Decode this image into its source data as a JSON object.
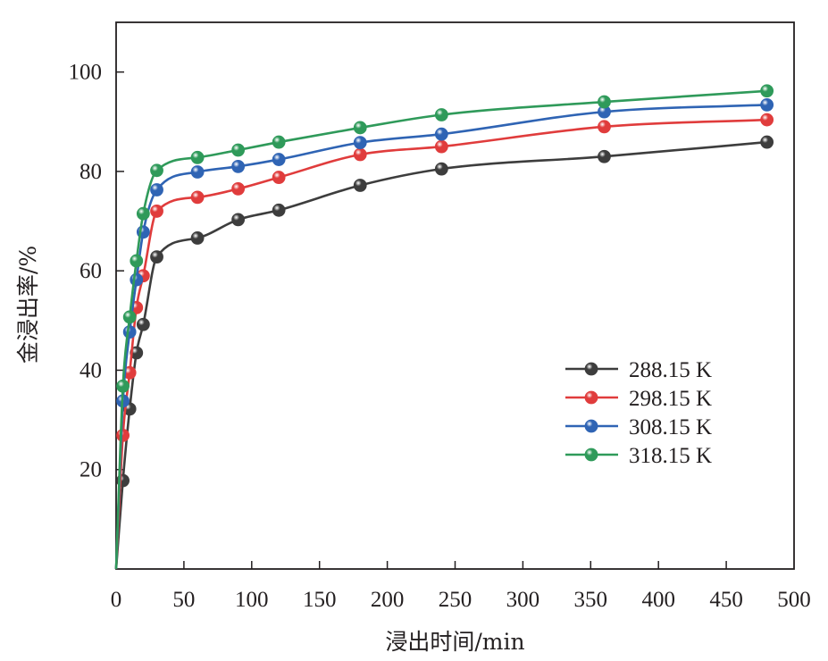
{
  "chart_data": {
    "type": "line",
    "xlabel": "浸出时间/min",
    "ylabel": "金浸出率/%",
    "xlim": [
      0,
      500
    ],
    "ylim": [
      0,
      110
    ],
    "x_ticks": [
      0,
      50,
      100,
      150,
      200,
      250,
      300,
      350,
      400,
      450,
      500
    ],
    "y_ticks": [
      20,
      40,
      60,
      80,
      100
    ],
    "grid": false,
    "legend_position": "bottom-right",
    "x": [
      0,
      5,
      10,
      15,
      20,
      30,
      60,
      90,
      120,
      180,
      240,
      360,
      480
    ],
    "series": [
      {
        "name": "288.15 K",
        "color": "#3d3d3d",
        "values": [
          0,
          17.8,
          32.2,
          43.5,
          49.2,
          62.8,
          66.6,
          70.3,
          72.2,
          77.2,
          80.5,
          83.0,
          85.9
        ]
      },
      {
        "name": "298.15 K",
        "color": "#e03c3c",
        "values": [
          0,
          26.9,
          39.5,
          52.6,
          59.0,
          72.0,
          74.8,
          76.5,
          78.8,
          83.4,
          85.0,
          89.0,
          90.4
        ]
      },
      {
        "name": "308.15 K",
        "color": "#2f64b4",
        "values": [
          0,
          33.8,
          47.7,
          58.2,
          67.8,
          76.3,
          79.9,
          81.0,
          82.4,
          85.8,
          87.5,
          92.0,
          93.4
        ]
      },
      {
        "name": "318.15 K",
        "color": "#2f9a5a",
        "values": [
          0,
          36.8,
          50.7,
          62.0,
          71.5,
          80.2,
          82.8,
          84.3,
          85.9,
          88.8,
          91.4,
          94.0,
          96.2
        ]
      }
    ]
  }
}
